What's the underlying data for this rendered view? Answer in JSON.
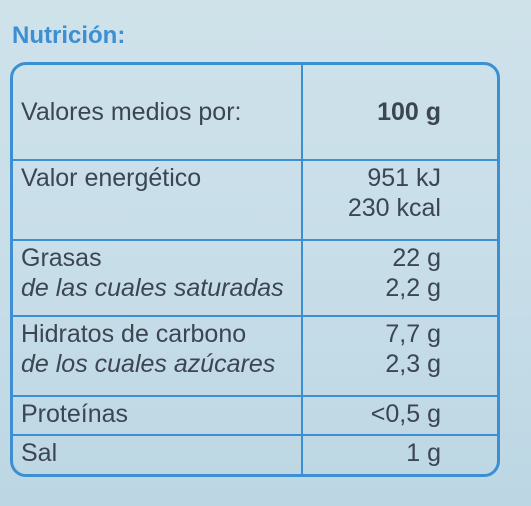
{
  "title": "Nutrición:",
  "table": {
    "header": [
      "Valores medios por:",
      "100 g"
    ],
    "rows": [
      {
        "labels": [
          "Valor energético"
        ],
        "values": [
          "951 kJ",
          "230 kcal"
        ]
      },
      {
        "labels": [
          "Grasas",
          "de las cuales saturadas"
        ],
        "values": [
          "22 g",
          "2,2 g"
        ]
      },
      {
        "labels": [
          "Hidratos de carbono",
          "de los cuales azúcares"
        ],
        "values": [
          "7,7 g",
          "2,3 g"
        ]
      },
      {
        "labels": [
          "Proteínas"
        ],
        "values": [
          "<0,5 g"
        ]
      },
      {
        "labels": [
          "Sal"
        ],
        "values": [
          "1 g"
        ]
      }
    ]
  }
}
